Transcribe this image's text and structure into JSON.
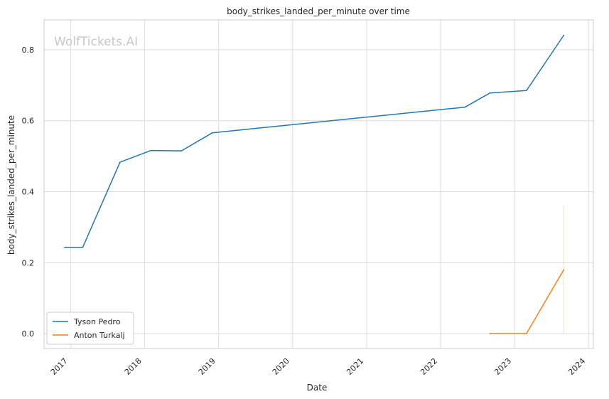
{
  "watermark": "WolfTickets.AI",
  "chart_data": {
    "type": "line",
    "title": "body_strikes_landed_per_minute over time",
    "xlabel": "Date",
    "ylabel": "body_strikes_landed_per_minute",
    "x_ticks": [
      "2017",
      "2018",
      "2019",
      "2020",
      "2021",
      "2022",
      "2023",
      "2024"
    ],
    "y_ticks": [
      "0.0",
      "0.2",
      "0.4",
      "0.6",
      "0.8"
    ],
    "xlim": [
      "2016-08-22",
      "2024-01-25"
    ],
    "ylim": [
      -0.042,
      0.884
    ],
    "grid": true,
    "legend_position": "lower-left",
    "series": [
      {
        "name": "Tyson Pedro",
        "color": "#1f77b4",
        "points": [
          [
            "2016-12-01",
            0.243
          ],
          [
            "2017-03-01",
            0.243
          ],
          [
            "2017-09-01",
            0.483
          ],
          [
            "2018-02-01",
            0.516
          ],
          [
            "2018-07-01",
            0.515
          ],
          [
            "2018-12-01",
            0.566
          ],
          [
            "2022-05-01",
            0.638
          ],
          [
            "2022-09-01",
            0.678
          ],
          [
            "2023-03-01",
            0.685
          ],
          [
            "2023-09-01",
            0.841
          ]
        ]
      },
      {
        "name": "Anton Turkalj",
        "color": "#ff7f0e",
        "points": [
          [
            "2022-09-01",
            0.0
          ],
          [
            "2023-03-01",
            0.0
          ],
          [
            "2023-09-01",
            0.18
          ]
        ],
        "error_bar": {
          "x": "2023-09-01",
          "low": 0.0,
          "high": 0.36
        }
      }
    ]
  }
}
